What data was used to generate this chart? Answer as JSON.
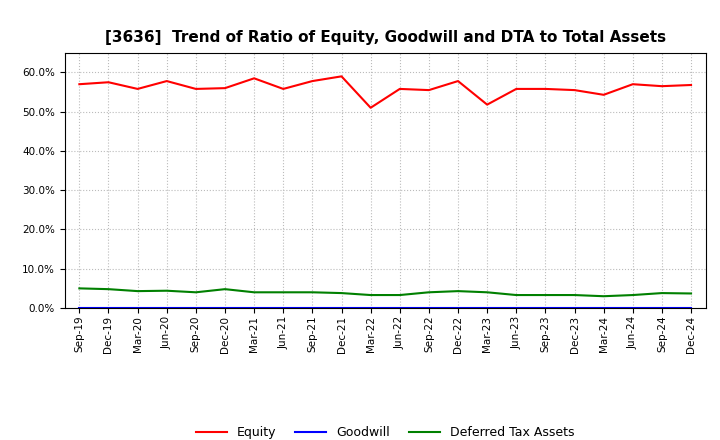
{
  "title": "[3636]  Trend of Ratio of Equity, Goodwill and DTA to Total Assets",
  "labels": [
    "Sep-19",
    "Dec-19",
    "Mar-20",
    "Jun-20",
    "Sep-20",
    "Dec-20",
    "Mar-21",
    "Jun-21",
    "Sep-21",
    "Dec-21",
    "Mar-22",
    "Jun-22",
    "Sep-22",
    "Dec-22",
    "Mar-23",
    "Jun-23",
    "Sep-23",
    "Dec-23",
    "Mar-24",
    "Jun-24",
    "Sep-24",
    "Dec-24"
  ],
  "equity": [
    0.57,
    0.575,
    0.558,
    0.578,
    0.558,
    0.56,
    0.585,
    0.558,
    0.578,
    0.59,
    0.51,
    0.558,
    0.555,
    0.578,
    0.518,
    0.558,
    0.558,
    0.555,
    0.543,
    0.57,
    0.565,
    0.568
  ],
  "goodwill": [
    0.001,
    0.001,
    0.001,
    0.001,
    0.001,
    0.001,
    0.001,
    0.001,
    0.001,
    0.001,
    0.001,
    0.001,
    0.001,
    0.001,
    0.001,
    0.001,
    0.001,
    0.001,
    0.001,
    0.001,
    0.001,
    0.001
  ],
  "dta": [
    0.05,
    0.048,
    0.043,
    0.044,
    0.04,
    0.048,
    0.04,
    0.04,
    0.04,
    0.038,
    0.033,
    0.033,
    0.04,
    0.043,
    0.04,
    0.033,
    0.033,
    0.033,
    0.03,
    0.033,
    0.038,
    0.037
  ],
  "equity_color": "#FF0000",
  "goodwill_color": "#0000FF",
  "dta_color": "#008000",
  "ylim": [
    0.0,
    0.65
  ],
  "yticks": [
    0.0,
    0.1,
    0.2,
    0.3,
    0.4,
    0.5,
    0.6
  ],
  "background_color": "#FFFFFF",
  "grid_color": "#BBBBBB",
  "title_fontsize": 11,
  "tick_fontsize": 7.5,
  "legend_fontsize": 9
}
